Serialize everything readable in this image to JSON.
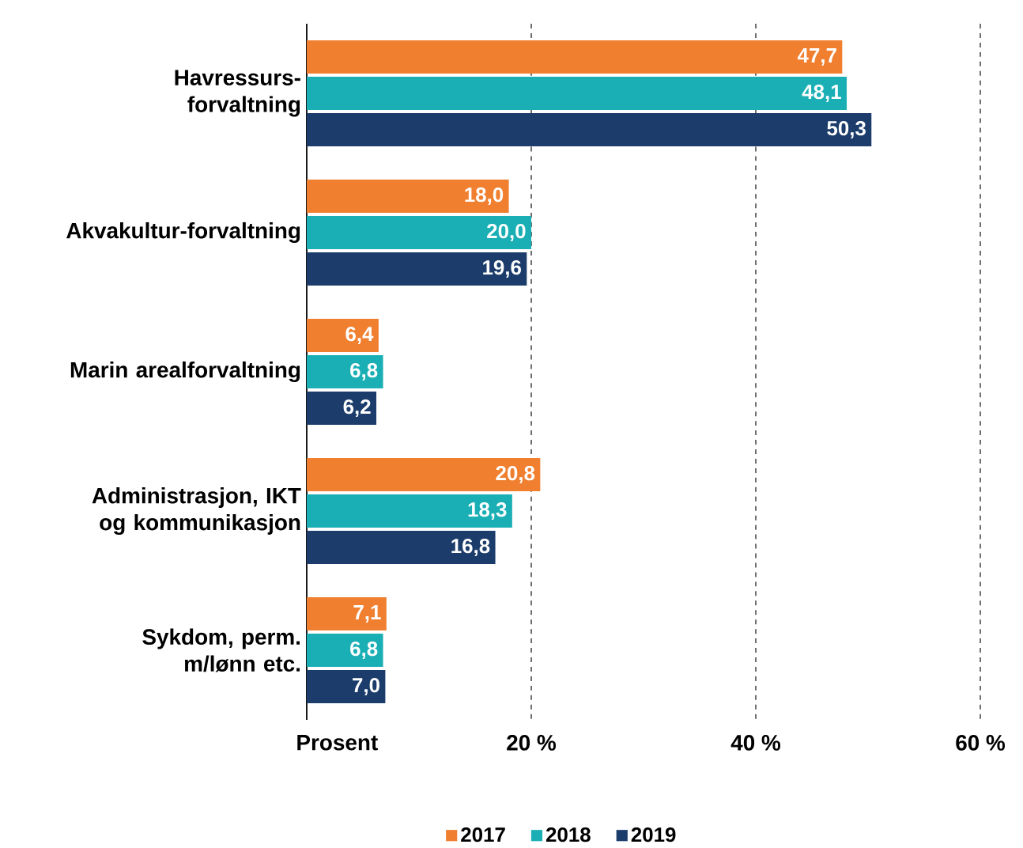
{
  "chart_data": {
    "type": "bar",
    "orientation": "horizontal",
    "xlabel": "Prosent",
    "categories": [
      "Havressurs-forvaltning",
      "Akvakultur-forvaltning",
      "Marin arealforvaltning",
      "Administrasjon, IKT og kommunikasjon",
      "Sykdom, perm. m/lønn etc."
    ],
    "series": [
      {
        "name": "2017",
        "color": "#f07f2f",
        "values": [
          47.7,
          18.0,
          6.4,
          20.8,
          7.1
        ],
        "value_labels": [
          "47,7",
          "18,0",
          "6,4",
          "20,8",
          "7,1"
        ]
      },
      {
        "name": "2018",
        "color": "#1aafb5",
        "values": [
          48.1,
          20.0,
          6.8,
          18.3,
          6.8
        ],
        "value_labels": [
          "48,1",
          "20,0",
          "6,8",
          "18,3",
          "6,8"
        ]
      },
      {
        "name": "2019",
        "color": "#1c3d6b",
        "values": [
          50.3,
          19.6,
          6.2,
          16.8,
          7.0
        ],
        "value_labels": [
          "50,3",
          "19,6",
          "6,2",
          "16,8",
          "7,0"
        ]
      }
    ],
    "xlim": [
      0,
      60
    ],
    "xticks": [
      {
        "value": 20,
        "label": "20 %"
      },
      {
        "value": 40,
        "label": "40 %"
      },
      {
        "value": 60,
        "label": "60 %"
      }
    ],
    "grid": "x",
    "legend": "bottom"
  }
}
